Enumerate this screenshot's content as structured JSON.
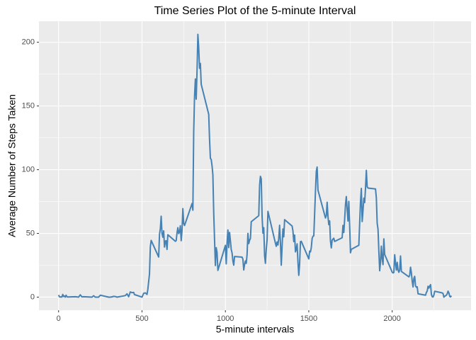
{
  "chart_data": {
    "type": "line",
    "title": "Time Series Plot of the 5-minute Interval",
    "x_label": "5-minute intervals",
    "y_label": "Average Number of Steps Taken",
    "color": "#4682B4",
    "xlim": [
      -117.75,
      2472.75
    ],
    "ylim": [
      -10.3,
      216.5
    ],
    "xticks": [
      0,
      500,
      1000,
      1500,
      2000
    ],
    "yticks": [
      0,
      50,
      100,
      150,
      200
    ],
    "x_minor_grid": [
      250,
      750,
      1250,
      1750,
      2250
    ],
    "y_minor_grid": [
      25,
      75,
      125,
      175
    ],
    "grid": true,
    "x": [
      0,
      5,
      10,
      15,
      20,
      25,
      30,
      35,
      40,
      45,
      50,
      55,
      100,
      110,
      120,
      130,
      140,
      150,
      200,
      210,
      220,
      230,
      240,
      250,
      300,
      310,
      320,
      330,
      340,
      350,
      400,
      410,
      420,
      430,
      440,
      450,
      455,
      500,
      510,
      520,
      530,
      535,
      545,
      550,
      555,
      600,
      605,
      610,
      615,
      620,
      625,
      630,
      635,
      640,
      645,
      650,
      655,
      700,
      705,
      710,
      715,
      720,
      725,
      730,
      735,
      740,
      745,
      750,
      755,
      800,
      805,
      810,
      815,
      820,
      825,
      830,
      835,
      840,
      845,
      850,
      855,
      900,
      905,
      910,
      915,
      920,
      925,
      930,
      935,
      940,
      945,
      950,
      955,
      1000,
      1005,
      1010,
      1015,
      1020,
      1025,
      1030,
      1035,
      1040,
      1045,
      1050,
      1055,
      1100,
      1105,
      1110,
      1115,
      1120,
      1125,
      1130,
      1135,
      1140,
      1145,
      1150,
      1155,
      1200,
      1205,
      1210,
      1215,
      1220,
      1225,
      1230,
      1235,
      1240,
      1245,
      1250,
      1255,
      1300,
      1305,
      1310,
      1315,
      1320,
      1325,
      1330,
      1335,
      1340,
      1345,
      1350,
      1355,
      1400,
      1405,
      1410,
      1415,
      1420,
      1425,
      1430,
      1435,
      1440,
      1445,
      1450,
      1455,
      1500,
      1505,
      1510,
      1515,
      1520,
      1525,
      1530,
      1535,
      1540,
      1545,
      1550,
      1555,
      1600,
      1605,
      1610,
      1615,
      1620,
      1625,
      1630,
      1635,
      1640,
      1645,
      1650,
      1655,
      1700,
      1705,
      1710,
      1715,
      1720,
      1725,
      1730,
      1735,
      1740,
      1745,
      1750,
      1755,
      1800,
      1805,
      1810,
      1815,
      1820,
      1825,
      1830,
      1835,
      1840,
      1845,
      1850,
      1855,
      1900,
      1905,
      1910,
      1915,
      1920,
      1925,
      1930,
      1935,
      1940,
      1945,
      1950,
      1955,
      2000,
      2005,
      2010,
      2015,
      2020,
      2025,
      2030,
      2035,
      2040,
      2045,
      2050,
      2055,
      2100,
      2105,
      2110,
      2115,
      2120,
      2125,
      2130,
      2135,
      2140,
      2145,
      2150,
      2155,
      2200,
      2205,
      2210,
      2215,
      2220,
      2225,
      2230,
      2235,
      2240,
      2245,
      2250,
      2255,
      2300,
      2305,
      2310,
      2315,
      2320,
      2325,
      2330,
      2335,
      2340,
      2345,
      2350,
      2355
    ],
    "values": [
      1.7,
      0.3,
      0.1,
      0.2,
      0.1,
      2.1,
      0.5,
      0.9,
      0,
      1.5,
      0.3,
      0.1,
      0.3,
      0.2,
      0,
      1.8,
      0.2,
      0.3,
      0,
      1.1,
      0,
      0,
      0,
      1.5,
      0,
      0,
      0.2,
      0.6,
      0.5,
      0,
      1.2,
      2.6,
      0.3,
      4.1,
      3.5,
      3.7,
      2.0,
      0,
      3.0,
      3.3,
      2.1,
      6.1,
      18.3,
      39.5,
      44.5,
      31.5,
      49.3,
      53.8,
      63.5,
      50,
      47,
      52,
      39.3,
      44,
      44.2,
      37.4,
      49,
      43.8,
      44.4,
      50.5,
      54.5,
      49.9,
      51,
      56,
      44.3,
      52.3,
      69.5,
      57.8,
      56.2,
      73.4,
      68.2,
      129.4,
      157.5,
      171.2,
      155.4,
      177.3,
      206.2,
      195.9,
      179.6,
      183.4,
      167,
      143.5,
      124,
      109,
      108,
      103,
      95.9,
      66.2,
      45.2,
      24.8,
      38.8,
      35,
      21,
      40.6,
      26.1,
      42.4,
      52.7,
      38.9,
      50.8,
      44.3,
      37.4,
      34.7,
      28.3,
      25.1,
      31.9,
      31.4,
      29.7,
      21.3,
      25.5,
      28.4,
      26.5,
      33.4,
      50,
      42,
      44.6,
      46,
      59.2,
      63.9,
      87.7,
      94.8,
      92.8,
      63.4,
      50.2,
      54.5,
      32.4,
      26.5,
      37.7,
      45,
      67.3,
      42.3,
      39.9,
      43.3,
      40.9,
      46.2,
      56.4,
      42.8,
      25.1,
      39.9,
      53.5,
      47.3,
      60.8,
      55.8,
      51.9,
      43.6,
      48.7,
      35.5,
      37.5,
      41.8,
      27.5,
      17.1,
      26.1,
      43.6,
      43.8,
      30,
      36.1,
      35.5,
      38.8,
      46,
      47.8,
      48.1,
      65.3,
      82.9,
      98.7,
      102.1,
      84,
      62.1,
      64.1,
      74.5,
      63.2,
      56.9,
      59.8,
      43.9,
      38.6,
      44.7,
      45.5,
      46.2,
      43.7,
      46.6,
      56.3,
      50.7,
      61.2,
      72.7,
      78.9,
      68.9,
      59.7,
      75.1,
      56.5,
      34.8,
      37.5,
      40.7,
      58,
      74.7,
      85.3,
      59.3,
      67.8,
      77.7,
      74.2,
      85.3,
      99.5,
      86.6,
      85.6,
      84.9,
      77.8,
      58,
      53.4,
      36.3,
      20.7,
      27.4,
      40,
      30.2,
      25.5,
      45.7,
      33.5,
      19.6,
      19,
      19.3,
      33.3,
      26.8,
      21.2,
      27.3,
      21.3,
      19.5,
      21.3,
      32.3,
      20.2,
      15.9,
      17.2,
      23.5,
      19.2,
      12.5,
      8,
      14.7,
      16.3,
      8.7,
      7.8,
      8.1,
      2.6,
      1.5,
      3.7,
      4.8,
      8.5,
      7.1,
      8.7,
      9.8,
      2.2,
      0.3,
      0.1,
      1.6,
      4.6,
      3.3,
      2.8,
      0,
      0.8,
      1,
      1.6,
      2.6,
      4.7,
      3.3,
      0.6,
      0.2,
      1.1
    ]
  }
}
